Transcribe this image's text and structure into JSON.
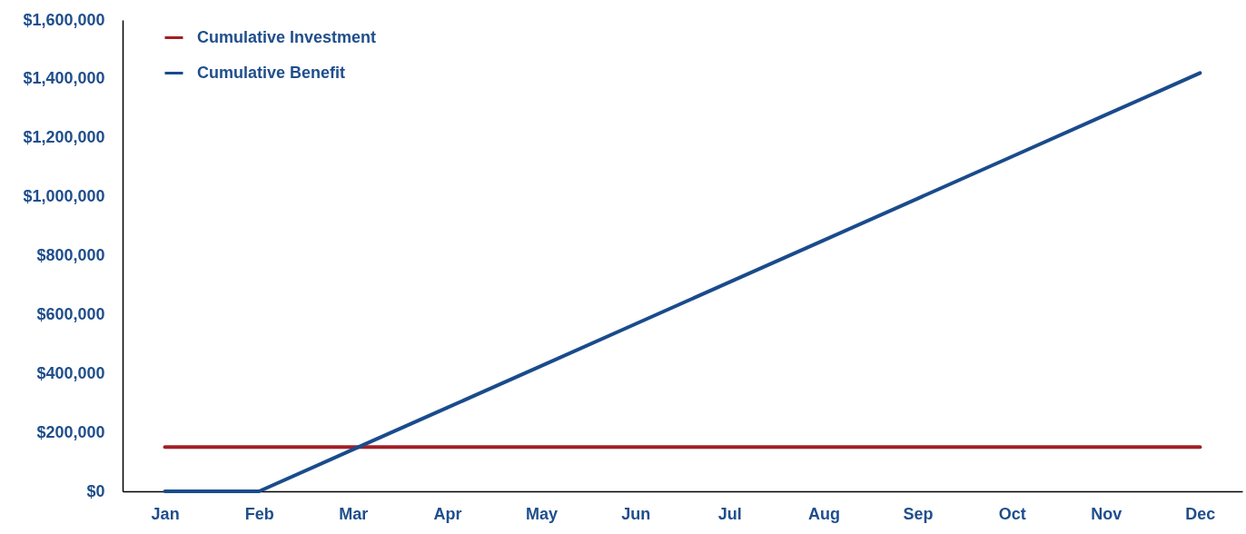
{
  "chart_data": {
    "type": "line",
    "categories": [
      "Jan",
      "Feb",
      "Mar",
      "Apr",
      "May",
      "Jun",
      "Jul",
      "Aug",
      "Sep",
      "Oct",
      "Nov",
      "Dec"
    ],
    "series": [
      {
        "name": "Cumulative Investment",
        "color": "#a31f24",
        "values": [
          150000,
          150000,
          150000,
          150000,
          150000,
          150000,
          150000,
          150000,
          150000,
          150000,
          150000,
          150000
        ]
      },
      {
        "name": "Cumulative Benefit",
        "color": "#1a4b8c",
        "values": [
          0,
          0,
          142000,
          284000,
          426000,
          568000,
          710000,
          852000,
          994000,
          1136000,
          1278000,
          1420000
        ]
      }
    ],
    "ylim": [
      0,
      1600000
    ],
    "yticks": [
      {
        "value": 0,
        "label": "$0"
      },
      {
        "value": 200000,
        "label": "$200,000"
      },
      {
        "value": 400000,
        "label": "$400,000"
      },
      {
        "value": 600000,
        "label": "$600,000"
      },
      {
        "value": 800000,
        "label": "$800,000"
      },
      {
        "value": 1000000,
        "label": "$1,000,000"
      },
      {
        "value": 1200000,
        "label": "$1,200,000"
      },
      {
        "value": 1400000,
        "label": "$1,400,000"
      },
      {
        "value": 1600000,
        "label": "$1,600,000"
      }
    ],
    "grid": false,
    "legend": "top left",
    "marker": "none",
    "line_style": "solid"
  }
}
